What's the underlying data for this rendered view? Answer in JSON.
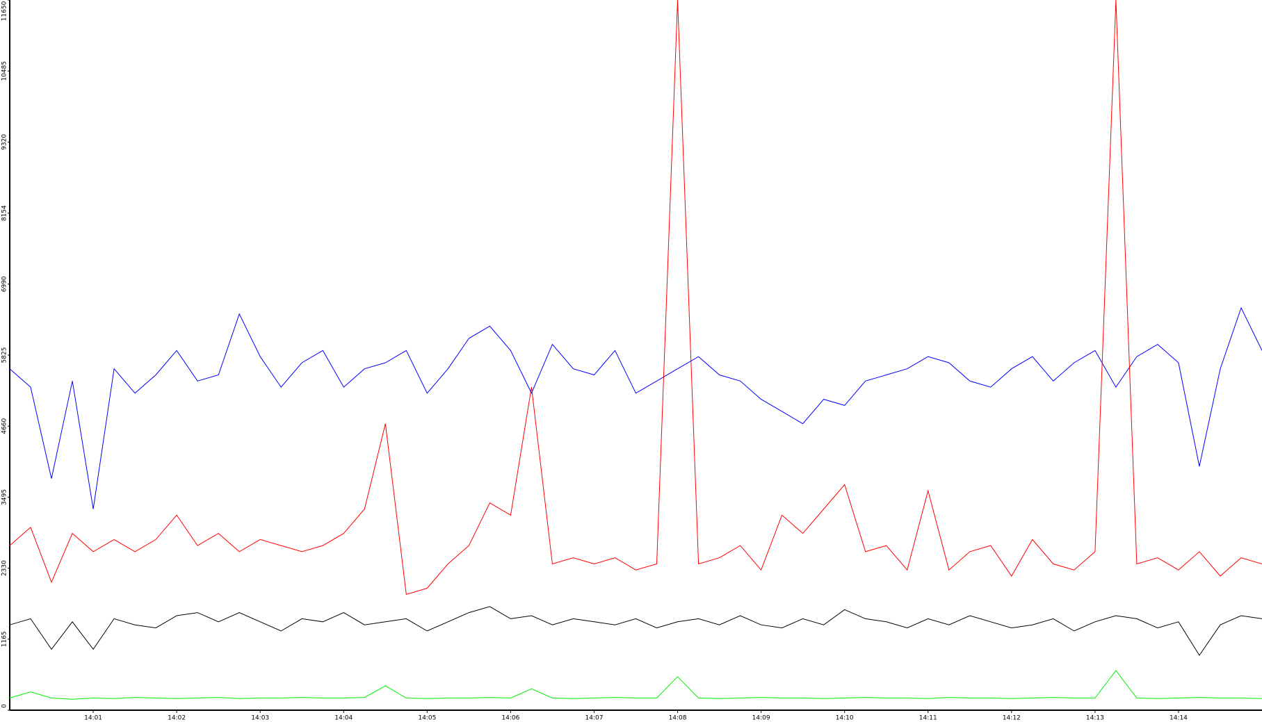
{
  "chart_data": {
    "type": "line",
    "xlim": [
      0,
      15
    ],
    "xticks": [
      {
        "value": 1,
        "label": "14:01"
      },
      {
        "value": 2,
        "label": "14:02"
      },
      {
        "value": 3,
        "label": "14:03"
      },
      {
        "value": 4,
        "label": "14:04"
      },
      {
        "value": 5,
        "label": "14:05"
      },
      {
        "value": 6,
        "label": "14:06"
      },
      {
        "value": 7,
        "label": "14:07"
      },
      {
        "value": 8,
        "label": "14:08"
      },
      {
        "value": 9,
        "label": "14:09"
      },
      {
        "value": 10,
        "label": "14:10"
      },
      {
        "value": 11,
        "label": "14:11"
      },
      {
        "value": 12,
        "label": "14:12"
      },
      {
        "value": 13,
        "label": "14:13"
      },
      {
        "value": 14,
        "label": "14:14"
      }
    ],
    "ylim": [
      0,
      11650
    ],
    "yticks": [
      0,
      1165,
      2330,
      3495,
      4660,
      5825,
      6990,
      8154,
      9320,
      10485,
      11650
    ],
    "x": [
      0,
      0.25,
      0.5,
      0.75,
      1,
      1.25,
      1.5,
      1.75,
      2,
      2.25,
      2.5,
      2.75,
      3,
      3.25,
      3.5,
      3.75,
      4,
      4.25,
      4.5,
      4.75,
      5,
      5.25,
      5.5,
      5.75,
      6,
      6.25,
      6.5,
      6.75,
      7,
      7.25,
      7.5,
      7.75,
      8,
      8.25,
      8.5,
      8.75,
      9,
      9.25,
      9.5,
      9.75,
      10,
      10.25,
      10.5,
      10.75,
      11,
      11.25,
      11.5,
      11.75,
      12,
      12.25,
      12.5,
      12.75,
      13,
      13.25,
      13.5,
      13.75,
      14,
      14.25,
      14.5,
      14.75,
      15
    ],
    "series": [
      {
        "color": "#0000ff",
        "values": [
          5600,
          5300,
          3800,
          5400,
          3300,
          5600,
          5200,
          5500,
          5900,
          5400,
          5500,
          6500,
          5800,
          5300,
          5700,
          5900,
          5300,
          5600,
          5700,
          5900,
          5200,
          5600,
          6100,
          6300,
          5900,
          5200,
          6000,
          5600,
          5500,
          5900,
          5200,
          5400,
          5600,
          5800,
          5500,
          5400,
          5100,
          4900,
          4700,
          5100,
          5000,
          5400,
          5500,
          5600,
          5800,
          5700,
          5400,
          5300,
          5600,
          5800,
          5400,
          5700,
          5900,
          5300,
          5800,
          6000,
          5700,
          4000,
          5600,
          6600,
          5900
        ]
      },
      {
        "color": "#ff0000",
        "values": [
          2700,
          3000,
          2100,
          2900,
          2600,
          2800,
          2600,
          2800,
          3200,
          2700,
          2900,
          2600,
          2800,
          2700,
          2600,
          2700,
          2900,
          3300,
          4700,
          1900,
          2000,
          2400,
          2700,
          3400,
          3200,
          5300,
          2400,
          2500,
          2400,
          2500,
          2300,
          2400,
          11650,
          2400,
          2500,
          2700,
          2300,
          3200,
          2900,
          3300,
          3700,
          2600,
          2700,
          2300,
          3600,
          2300,
          2600,
          2700,
          2200,
          2800,
          2400,
          2300,
          2600,
          11650,
          2400,
          2500,
          2300,
          2600,
          2200,
          2500,
          2400
        ]
      },
      {
        "color": "#000000",
        "values": [
          1400,
          1500,
          1000,
          1450,
          1000,
          1500,
          1400,
          1350,
          1550,
          1600,
          1450,
          1600,
          1450,
          1300,
          1500,
          1450,
          1600,
          1400,
          1450,
          1500,
          1300,
          1450,
          1600,
          1700,
          1500,
          1550,
          1400,
          1500,
          1450,
          1400,
          1500,
          1350,
          1450,
          1500,
          1400,
          1550,
          1400,
          1350,
          1500,
          1400,
          1650,
          1500,
          1450,
          1350,
          1500,
          1400,
          1550,
          1450,
          1350,
          1400,
          1500,
          1300,
          1450,
          1550,
          1500,
          1350,
          1450,
          900,
          1400,
          1550,
          1500
        ]
      },
      {
        "color": "#00ee00",
        "values": [
          200,
          300,
          200,
          180,
          200,
          190,
          210,
          200,
          190,
          200,
          210,
          190,
          200,
          200,
          210,
          200,
          200,
          210,
          400,
          200,
          190,
          200,
          200,
          210,
          200,
          350,
          200,
          190,
          200,
          210,
          200,
          200,
          550,
          200,
          190,
          200,
          210,
          200,
          200,
          190,
          200,
          210,
          200,
          200,
          190,
          210,
          200,
          200,
          190,
          200,
          210,
          200,
          200,
          650,
          200,
          190,
          200,
          210,
          200,
          200,
          190
        ]
      }
    ]
  }
}
